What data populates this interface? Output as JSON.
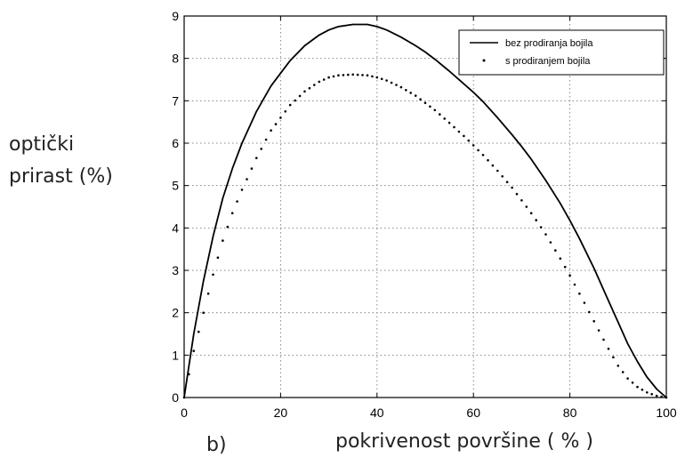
{
  "figure": {
    "panel_label": "b)",
    "ylabel_lines": [
      "optički",
      "prirast (%)"
    ],
    "xlabel": "pokrivenost površine ( % )"
  },
  "chart_data": {
    "type": "line",
    "xlim": [
      0,
      100
    ],
    "ylim": [
      0,
      9
    ],
    "xticks": [
      0,
      20,
      40,
      60,
      80,
      100
    ],
    "yticks": [
      0,
      1,
      2,
      3,
      4,
      5,
      6,
      7,
      8,
      9
    ],
    "grid": true,
    "legend_position": "top-right",
    "series": [
      {
        "name": "bez prodiranja bojila",
        "style": "solid",
        "color": "#000000",
        "x": [
          0,
          2,
          4,
          6,
          8,
          10,
          12,
          15,
          18,
          20,
          22,
          25,
          28,
          30,
          32,
          35,
          38,
          40,
          42,
          45,
          48,
          50,
          52,
          55,
          58,
          60,
          62,
          65,
          68,
          70,
          72,
          75,
          78,
          80,
          82,
          85,
          88,
          90,
          92,
          94,
          96,
          98,
          100
        ],
        "y": [
          0,
          1.5,
          2.75,
          3.8,
          4.7,
          5.4,
          6.0,
          6.75,
          7.35,
          7.65,
          7.95,
          8.3,
          8.55,
          8.67,
          8.75,
          8.8,
          8.8,
          8.75,
          8.67,
          8.5,
          8.3,
          8.15,
          7.98,
          7.7,
          7.4,
          7.2,
          6.98,
          6.6,
          6.2,
          5.92,
          5.62,
          5.12,
          4.58,
          4.18,
          3.75,
          3.05,
          2.28,
          1.78,
          1.27,
          0.85,
          0.48,
          0.2,
          0
        ]
      },
      {
        "name": "s prodiranjem bojila",
        "style": "dotted",
        "color": "#000000",
        "x": [
          0,
          2,
          4,
          6,
          8,
          10,
          12,
          15,
          18,
          20,
          22,
          25,
          28,
          30,
          32,
          35,
          38,
          40,
          42,
          45,
          48,
          50,
          52,
          55,
          58,
          60,
          62,
          65,
          68,
          70,
          72,
          75,
          78,
          80,
          82,
          85,
          88,
          90,
          92,
          94,
          96,
          98,
          100
        ],
        "y": [
          0,
          1.1,
          2.0,
          2.9,
          3.7,
          4.35,
          4.9,
          5.65,
          6.3,
          6.6,
          6.9,
          7.22,
          7.45,
          7.55,
          7.6,
          7.62,
          7.6,
          7.55,
          7.48,
          7.32,
          7.12,
          6.95,
          6.78,
          6.48,
          6.17,
          5.95,
          5.72,
          5.35,
          4.95,
          4.65,
          4.35,
          3.85,
          3.28,
          2.88,
          2.45,
          1.8,
          1.15,
          0.75,
          0.45,
          0.25,
          0.12,
          0.04,
          0
        ]
      }
    ]
  }
}
